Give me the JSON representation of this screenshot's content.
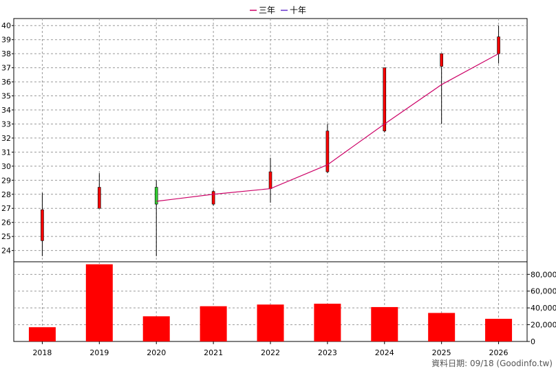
{
  "legend": [
    {
      "label": "三年",
      "color": "#cc0066"
    },
    {
      "label": "十年",
      "color": "#6633cc"
    }
  ],
  "footer": "資料日期: 09/18  (Goodinfo.tw)",
  "chart_data": [
    {
      "type": "candlestick",
      "x": [
        "2018",
        "2019",
        "2020",
        "2021",
        "2022",
        "2023",
        "2024",
        "2025",
        "2026"
      ],
      "candles": [
        {
          "open": 24.7,
          "close": 26.9,
          "high": 28.1,
          "low": 23.6
        },
        {
          "open": 27.0,
          "close": 28.5,
          "high": 29.5,
          "low": 27.0
        },
        {
          "open": 28.5,
          "close": 27.3,
          "high": 29.0,
          "low": 23.6
        },
        {
          "open": 27.3,
          "close": 28.2,
          "high": 28.3,
          "low": 27.2
        },
        {
          "open": 28.4,
          "close": 29.6,
          "high": 30.6,
          "low": 27.4
        },
        {
          "open": 29.6,
          "close": 32.5,
          "high": 33.0,
          "low": 29.5
        },
        {
          "open": 32.5,
          "close": 37.0,
          "high": 37.0,
          "low": 32.4
        },
        {
          "open": 37.1,
          "close": 38.0,
          "high": 38.0,
          "low": 33.0
        },
        {
          "open": 38.0,
          "close": 39.2,
          "high": 40.0,
          "low": 37.3
        }
      ],
      "up_color": "#ff0000",
      "down_color": "#33cc33",
      "series": [
        {
          "name": "三年",
          "color": "#cc0066",
          "values": [
            null,
            null,
            27.5,
            28.0,
            28.4,
            30.1,
            33.0,
            35.8,
            38.0
          ]
        }
      ],
      "yticks": [
        24,
        25,
        26,
        27,
        28,
        29,
        30,
        31,
        32,
        33,
        34,
        35,
        36,
        37,
        38,
        39,
        40
      ],
      "ylim": [
        23.2,
        40.5
      ],
      "grid": true,
      "legend_position": "top-center"
    },
    {
      "type": "bar",
      "x": [
        "2018",
        "2019",
        "2020",
        "2021",
        "2022",
        "2023",
        "2024",
        "2025",
        "2026"
      ],
      "values": [
        17000,
        92000,
        30000,
        42000,
        44000,
        45000,
        41000,
        34000,
        27000
      ],
      "color": "#ff0000",
      "yticks": [
        0,
        20000,
        40000,
        60000,
        80000
      ],
      "ytick_labels": [
        "0",
        "20,000",
        "40,000",
        "60,000",
        "80,000"
      ],
      "ylim": [
        0,
        95000
      ],
      "grid": true
    }
  ]
}
